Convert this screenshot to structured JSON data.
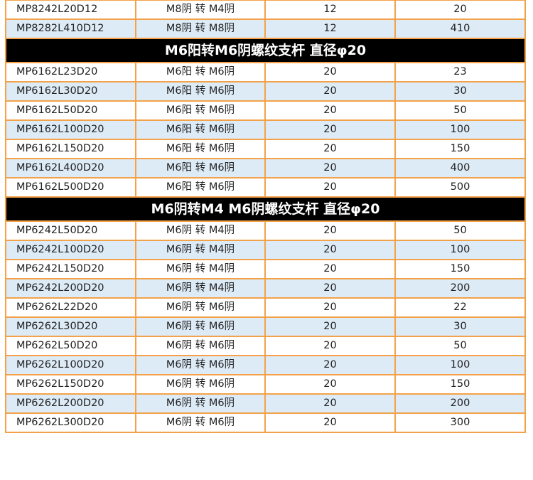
{
  "sections": [
    {
      "title": null,
      "rows": [
        [
          "MP8242L20D12",
          "M8阴 转 M4阴",
          "12",
          "20"
        ],
        [
          "MP8282L410D12",
          "M8阴 转 M8阴",
          "12",
          "410"
        ]
      ]
    },
    {
      "title": "M6阳转M6阴螺纹支杆  直径φ20",
      "rows": [
        [
          "MP6162L23D20",
          "M6阳 转 M6阴",
          "20",
          "23"
        ],
        [
          "MP6162L30D20",
          "M6阳 转 M6阴",
          "20",
          "30"
        ],
        [
          "MP6162L50D20",
          "M6阳 转 M6阴",
          "20",
          "50"
        ],
        [
          "MP6162L100D20",
          "M6阳 转 M6阴",
          "20",
          "100"
        ],
        [
          "MP6162L150D20",
          "M6阳 转 M6阴",
          "20",
          "150"
        ],
        [
          "MP6162L400D20",
          "M6阳 转 M6阴",
          "20",
          "400"
        ],
        [
          "MP6162L500D20",
          "M6阳 转 M6阴",
          "20",
          "500"
        ]
      ]
    },
    {
      "title": "M6阴转M4 M6阴螺纹支杆  直径φ20",
      "rows": [
        [
          "MP6242L50D20",
          "M6阴 转 M4阴",
          "20",
          "50"
        ],
        [
          "MP6242L100D20",
          "M6阴 转 M4阴",
          "20",
          "100"
        ],
        [
          "MP6242L150D20",
          "M6阴 转 M4阴",
          "20",
          "150"
        ],
        [
          "MP6242L200D20",
          "M6阴 转 M4阴",
          "20",
          "200"
        ],
        [
          "MP6262L22D20",
          "M6阴 转 M6阴",
          "20",
          "22"
        ],
        [
          "MP6262L30D20",
          "M6阴 转 M6阴",
          "20",
          "30"
        ],
        [
          "MP6262L50D20",
          "M6阴 转 M6阴",
          "20",
          "50"
        ],
        [
          "MP6262L100D20",
          "M6阴 转 M6阴",
          "20",
          "100"
        ],
        [
          "MP6262L150D20",
          "M6阴 转 M6阴",
          "20",
          "150"
        ],
        [
          "MP6262L200D20",
          "M6阴 转 M6阴",
          "20",
          "200"
        ],
        [
          "MP6262L300D20",
          "M6阴 转 M6阴",
          "20",
          "300"
        ]
      ]
    }
  ],
  "colors": {
    "border": "#f4a24a",
    "alt_row": "#ddebf7",
    "section_header": "#000000"
  }
}
